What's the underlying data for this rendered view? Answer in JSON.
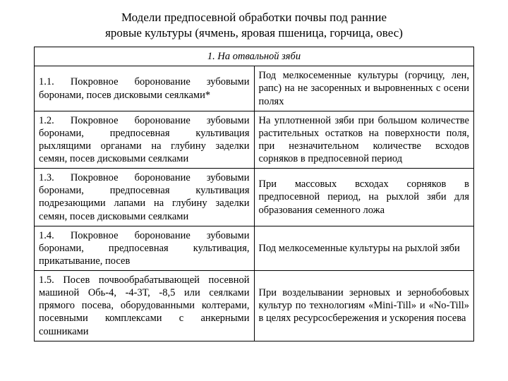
{
  "title_line1": "Модели предпосевной обработки почвы под ранние",
  "title_line2": "яровые культуры (ячмень, яровая пшеница, горчица, овес)",
  "section_header": "1. На отвальной зяби",
  "rows": [
    {
      "left": "1.1. Покровное боронование зубовыми боронами, посев дисковыми сеялками*",
      "right": "Под мелкосеменные культуры (горчицу, лен, рапс) на не засоренных и выровненных с осени полях"
    },
    {
      "left": "1.2. Покровное боронование зубовыми боронами, предпосевная культивация рыхлящими органами на глубину заделки семян, посев дисковыми сеялками",
      "right": "На уплотненной зяби при большом количестве растительных остатков на поверхности поля, при незначительном количестве всходов сорняков в предпосевной период"
    },
    {
      "left": "1.3. Покровное боронование зубовыми боронами, предпосевная культивация подрезающими лапами на глубину заделки семян, посев дисковыми сеялками",
      "right": "При массовых всходах сорняков в предпосевной период, на рыхлой зяби для образования семенного ложа"
    },
    {
      "left": "1.4. Покровное боронование зубовыми боронами, предпосевная культивация, прикатывание, посев",
      "right": "Под мелкосеменные культуры на рыхлой зяби"
    },
    {
      "left": "1.5. Посев почвообрабатывающей посевной машиной Обь-4, -4-3Т, -8,5 или сеялками прямого посева, оборудованными колтерами, посевными комплексами с анкерными сошниками",
      "right": "При возделывании зерновых и зернобобовых культур по технологиям «Mini-Till» и «No-Till» в целях ресурсосбережения и ускорения посева"
    }
  ]
}
